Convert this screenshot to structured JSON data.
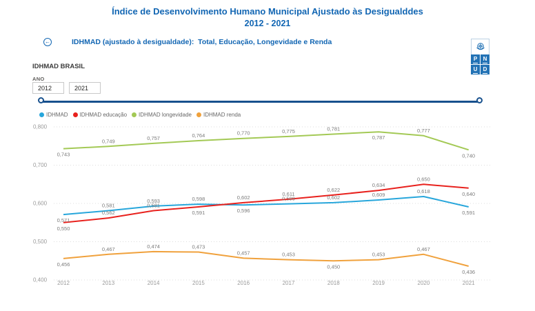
{
  "title": {
    "line1": "Índice de Desenvolvimento Humano Municipal Ajustado às Desigualddes",
    "line2": "2012 - 2021"
  },
  "subheader": {
    "back_icon": "←",
    "text": "IDHMAD (ajustado à desigualdade):  Total, Educação, Longevidade e Renda"
  },
  "logo": {
    "letters": {
      "0": "P",
      "1": "N",
      "2": "U",
      "3": "D"
    }
  },
  "panel": {
    "title": "IDHMAD BRASIL",
    "year_label": "ANO",
    "year_from": "2012",
    "year_to": "2021"
  },
  "theme": {
    "title_color": "#1266B3",
    "slider_color": "#17508D",
    "grid_color": "#DCDCDC",
    "axis_label_color": "#999999",
    "data_label_color": "#7A7A7A",
    "logo_blue": "#2272B5"
  },
  "chart_data": {
    "type": "line",
    "x": [
      2012,
      2013,
      2014,
      2015,
      2016,
      2017,
      2018,
      2019,
      2020,
      2021
    ],
    "series": [
      {
        "name": "IDHMAD",
        "color": "#27A6DB",
        "values": [
          0.571,
          0.581,
          0.593,
          0.598,
          0.596,
          0.599,
          0.602,
          0.609,
          0.618,
          0.591
        ],
        "label_side": [
          "b",
          "a",
          "a",
          "a",
          "b",
          "a",
          "a",
          "a",
          "a",
          "b"
        ]
      },
      {
        "name": "IDHMAD educação",
        "color": "#E8211D",
        "values": [
          0.55,
          0.562,
          0.581,
          0.591,
          0.602,
          0.611,
          0.622,
          0.634,
          0.65,
          0.64
        ],
        "label_side": [
          "b",
          "a",
          "a",
          "b",
          "a",
          "a",
          "a",
          "a",
          "a",
          "b"
        ]
      },
      {
        "name": "IDHMAD longevidade",
        "color": "#A3C955",
        "values": [
          0.743,
          0.749,
          0.757,
          0.764,
          0.77,
          0.775,
          0.781,
          0.787,
          0.777,
          0.74
        ],
        "label_side": [
          "b",
          "a",
          "a",
          "a",
          "a",
          "a",
          "a",
          "b",
          "a",
          "b"
        ]
      },
      {
        "name": "IDHMAD renda",
        "color": "#F0A13C",
        "values": [
          0.456,
          0.467,
          0.474,
          0.473,
          0.457,
          0.453,
          0.45,
          0.453,
          0.467,
          0.436
        ],
        "label_side": [
          "b",
          "a",
          "a",
          "a",
          "a",
          "a",
          "b",
          "a",
          "a",
          "b"
        ]
      }
    ],
    "ylim": [
      0.4,
      0.8
    ],
    "yticks": [
      0.8,
      0.7,
      0.6,
      0.5,
      0.4
    ],
    "grid": "horizontal-dotted",
    "legend_position": "top-left",
    "decimal_separator": ","
  }
}
